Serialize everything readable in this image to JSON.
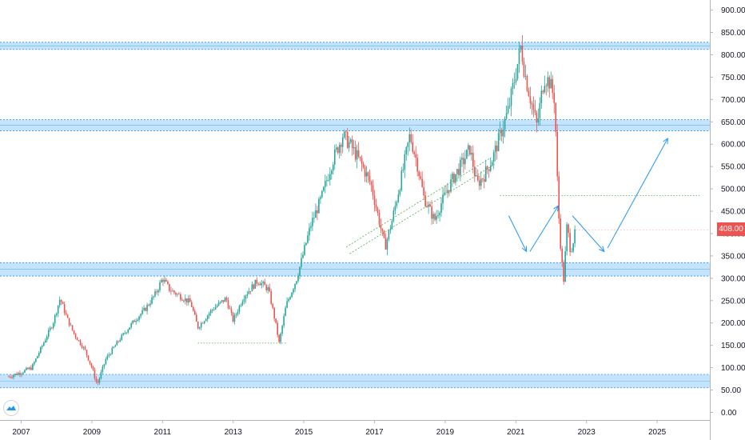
{
  "chart_data": {
    "type": "candlestick",
    "title": "",
    "xlabel": "",
    "ylabel": "",
    "x_range": [
      2006.6,
      2026.4
    ],
    "ylim": [
      -30,
      930
    ],
    "x_ticks": [
      2007,
      2009,
      2011,
      2013,
      2015,
      2017,
      2019,
      2021,
      2023,
      2025
    ],
    "x_tick_labels": [
      "2007",
      "2009",
      "2011",
      "2013",
      "2015",
      "2017",
      "2019",
      "2021",
      "2023",
      "2025"
    ],
    "y_ticks": [
      0,
      50,
      100,
      150,
      200,
      250,
      300,
      350,
      400,
      450,
      500,
      550,
      600,
      650,
      700,
      750,
      800,
      850,
      900
    ],
    "y_tick_labels": [
      "0.00",
      "50.00",
      "100.00",
      "150.00",
      "200.00",
      "250.00",
      "300.00",
      "350.00",
      "400.00",
      "450.00",
      "500.00",
      "550.00",
      "600.00",
      "650.00",
      "700.00",
      "750.00",
      "800.00",
      "850.00",
      "900.00"
    ],
    "last_price": 408,
    "last_price_label": "408.00",
    "grid": false,
    "colors": {
      "up": "#26a69a",
      "down": "#ef5350",
      "zone_fill": "#bbdefb",
      "zone_line": "#2196f3",
      "path": "#2196f3",
      "badge": "#ef5350"
    },
    "price_path": [
      [
        2006.65,
        80
      ],
      [
        2007.0,
        90
      ],
      [
        2007.3,
        100
      ],
      [
        2007.6,
        150
      ],
      [
        2007.9,
        200
      ],
      [
        2008.1,
        255
      ],
      [
        2008.3,
        210
      ],
      [
        2008.5,
        175
      ],
      [
        2008.8,
        140
      ],
      [
        2009.0,
        100
      ],
      [
        2009.15,
        62
      ],
      [
        2009.4,
        120
      ],
      [
        2009.8,
        165
      ],
      [
        2010.2,
        205
      ],
      [
        2010.5,
        230
      ],
      [
        2010.8,
        265
      ],
      [
        2011.0,
        300
      ],
      [
        2011.2,
        275
      ],
      [
        2011.5,
        260
      ],
      [
        2011.8,
        245
      ],
      [
        2012.0,
        190
      ],
      [
        2012.4,
        230
      ],
      [
        2012.8,
        255
      ],
      [
        2013.0,
        205
      ],
      [
        2013.3,
        260
      ],
      [
        2013.7,
        295
      ],
      [
        2014.0,
        275
      ],
      [
        2014.2,
        200
      ],
      [
        2014.3,
        155
      ],
      [
        2014.5,
        240
      ],
      [
        2014.8,
        300
      ],
      [
        2015.0,
        360
      ],
      [
        2015.2,
        420
      ],
      [
        2015.5,
        480
      ],
      [
        2015.8,
        560
      ],
      [
        2016.1,
        620
      ],
      [
        2016.3,
        600
      ],
      [
        2016.6,
        560
      ],
      [
        2016.9,
        510
      ],
      [
        2017.1,
        440
      ],
      [
        2017.3,
        370
      ],
      [
        2017.5,
        430
      ],
      [
        2017.8,
        540
      ],
      [
        2018.0,
        620
      ],
      [
        2018.2,
        560
      ],
      [
        2018.4,
        480
      ],
      [
        2018.7,
        430
      ],
      [
        2018.9,
        470
      ],
      [
        2019.2,
        520
      ],
      [
        2019.5,
        560
      ],
      [
        2019.7,
        590
      ],
      [
        2019.9,
        510
      ],
      [
        2020.1,
        530
      ],
      [
        2020.35,
        570
      ],
      [
        2020.6,
        630
      ],
      [
        2020.8,
        680
      ],
      [
        2021.0,
        760
      ],
      [
        2021.15,
        820
      ],
      [
        2021.25,
        760
      ],
      [
        2021.45,
        690
      ],
      [
        2021.6,
        640
      ],
      [
        2021.8,
        750
      ],
      [
        2021.95,
        740
      ],
      [
        2022.1,
        700
      ],
      [
        2022.2,
        460
      ],
      [
        2022.27,
        370
      ],
      [
        2022.35,
        290
      ],
      [
        2022.45,
        420
      ],
      [
        2022.55,
        360
      ],
      [
        2022.7,
        408
      ]
    ],
    "zones": [
      {
        "low": 812,
        "high": 828
      },
      {
        "low": 630,
        "high": 655
      },
      {
        "low": 305,
        "high": 335
      },
      {
        "low": 55,
        "high": 85
      }
    ],
    "dotted_levels": [
      {
        "x1": 2012.0,
        "x2": 2014.5,
        "y": 155
      },
      {
        "x1": 2020.55,
        "x2": 2026.2,
        "y": 485
      }
    ],
    "channel_lines": [
      {
        "x1": 2016.2,
        "y1": 370,
        "x2": 2020.3,
        "y2": 570
      },
      {
        "x1": 2016.3,
        "y1": 355,
        "x2": 2020.4,
        "y2": 555
      }
    ],
    "projection_arrows": [
      {
        "x1": 2020.8,
        "y1": 440,
        "x2": 2021.3,
        "y2": 360
      },
      {
        "x1": 2021.4,
        "y1": 360,
        "x2": 2022.2,
        "y2": 462
      },
      {
        "x1": 2022.6,
        "y1": 440,
        "x2": 2023.5,
        "y2": 360
      },
      {
        "x1": 2023.6,
        "y1": 368,
        "x2": 2025.3,
        "y2": 613
      }
    ]
  },
  "logo": {
    "icon": "tradingview-logo-icon"
  }
}
